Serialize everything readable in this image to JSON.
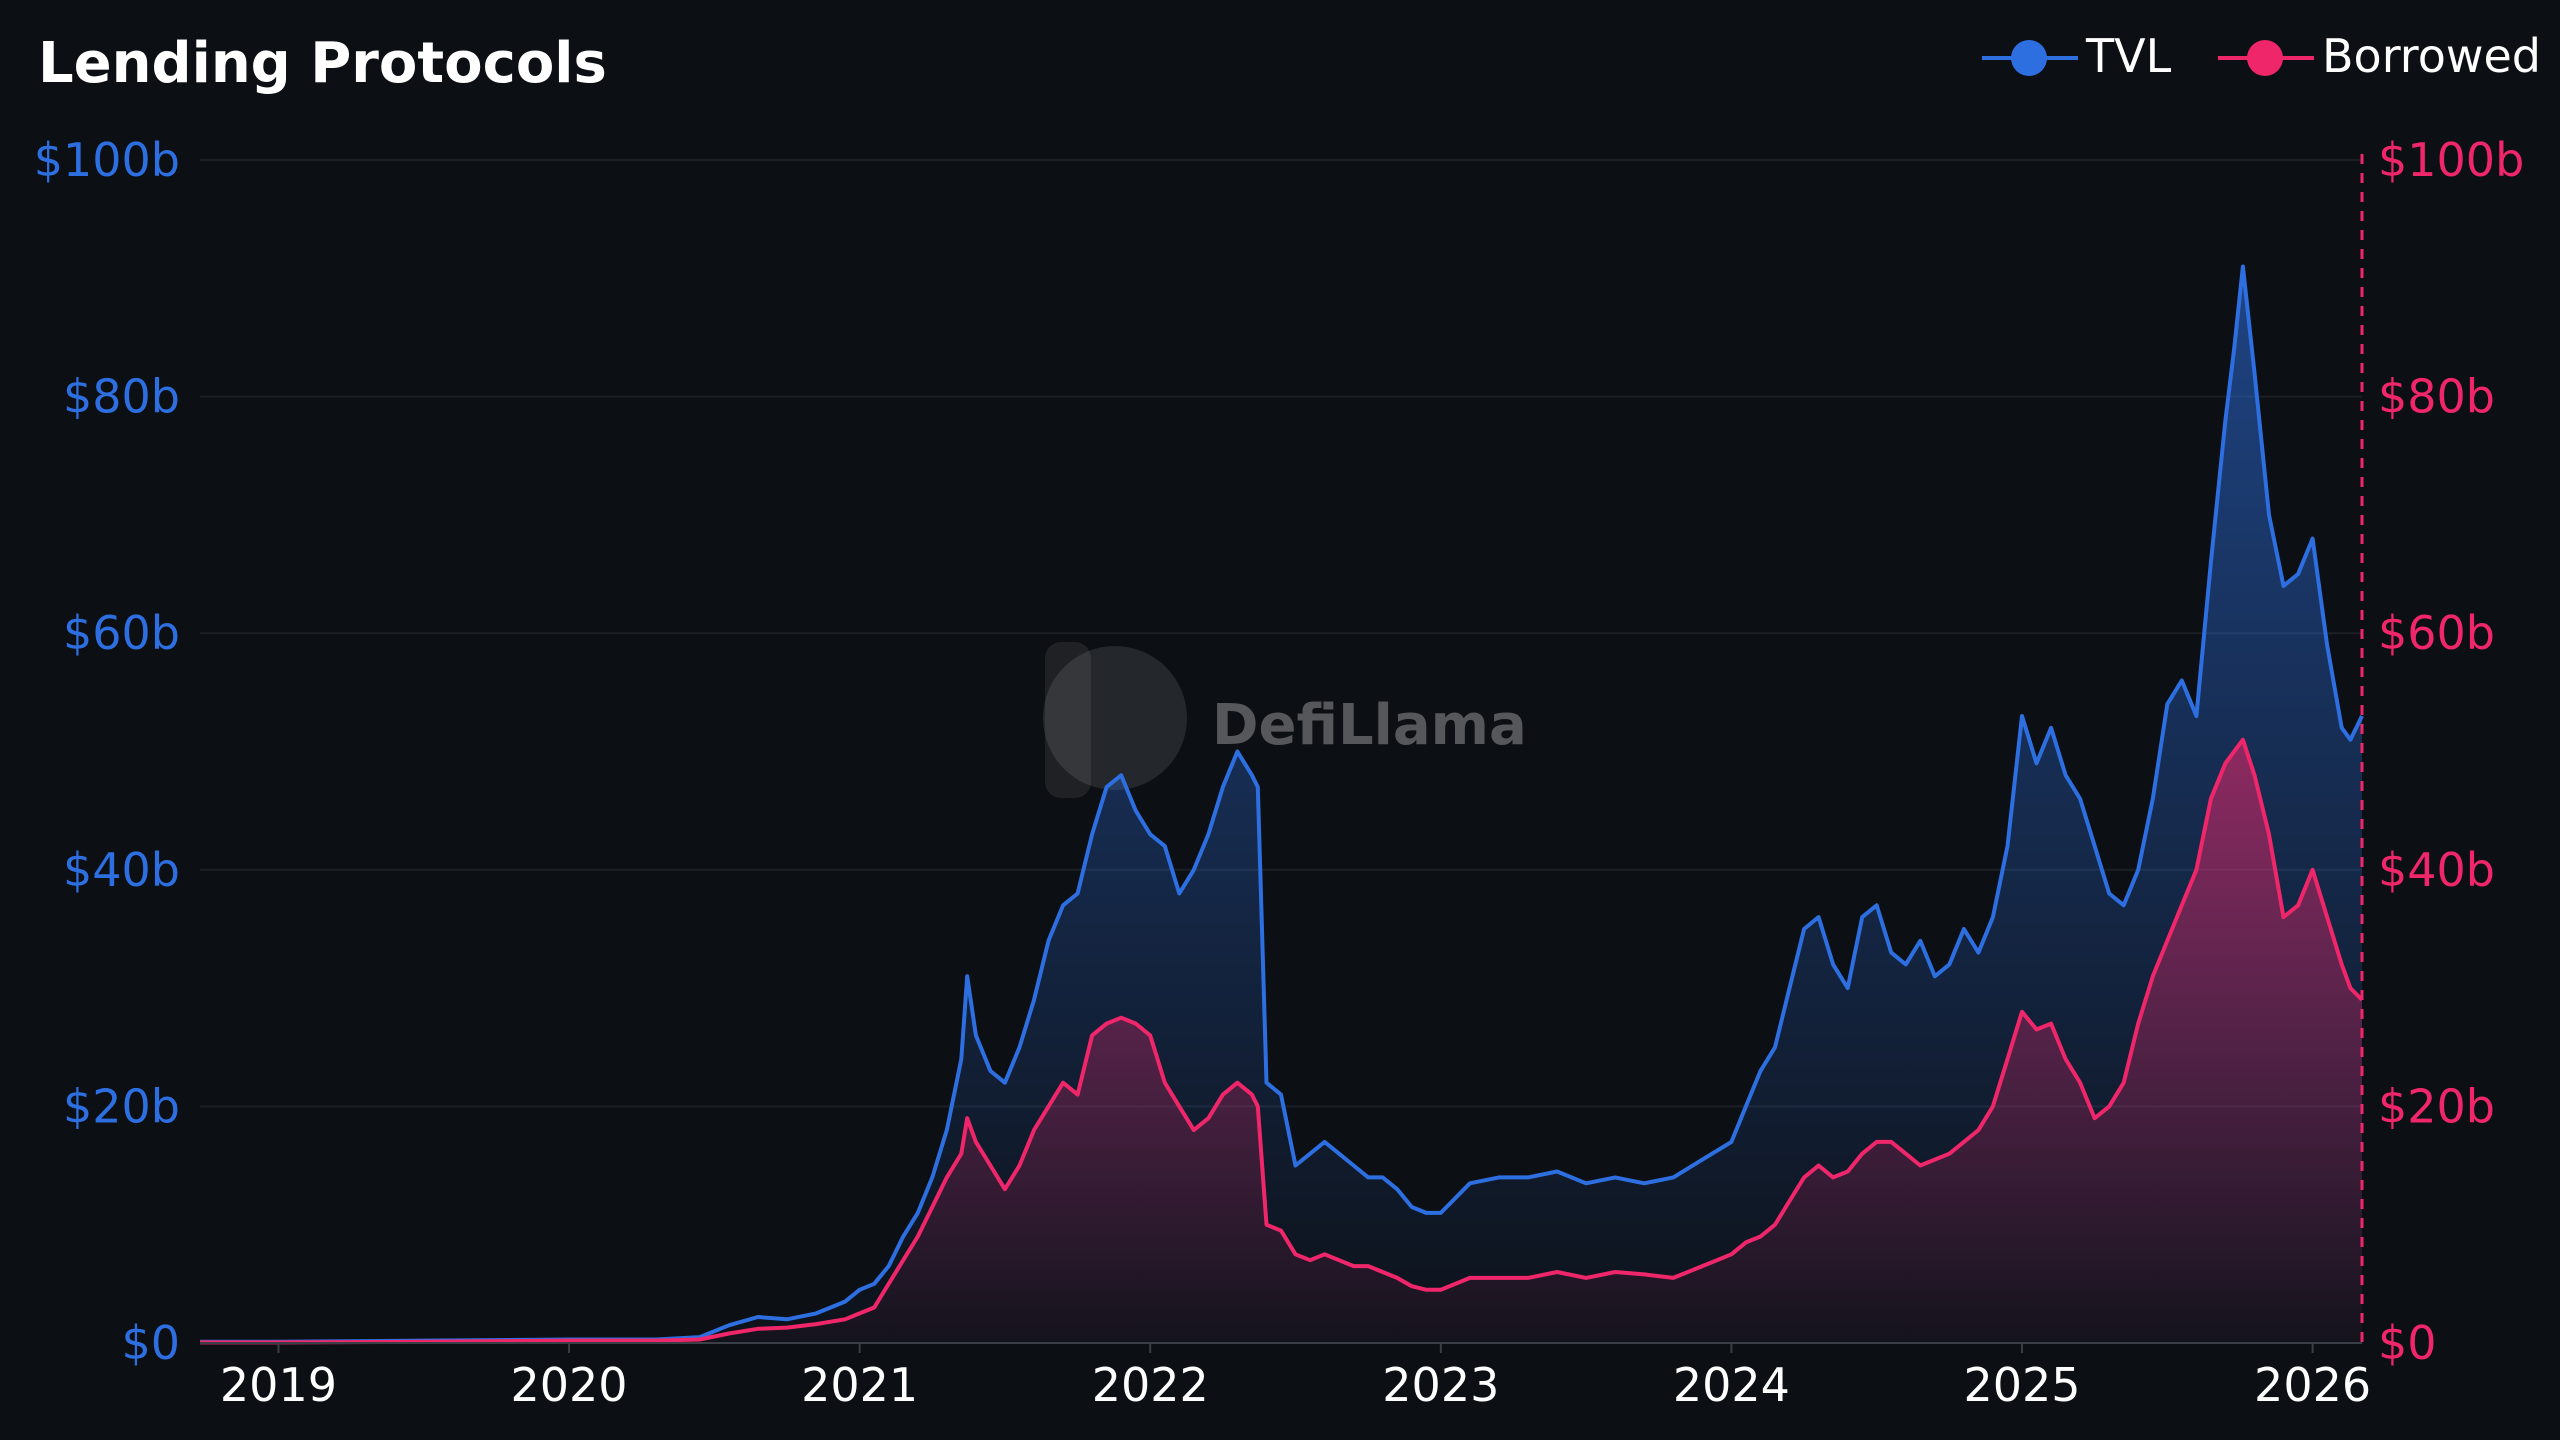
{
  "chart_data": {
    "type": "area",
    "title": "Lending Protocols",
    "watermark": "DefiLlama",
    "legend_position": "top-right",
    "grid": true,
    "x_unit": "year",
    "x_ticks": [
      "2019",
      "2020",
      "2021",
      "2022",
      "2023",
      "2024",
      "2025",
      "2026"
    ],
    "xlim": [
      2018.73,
      2026.17
    ],
    "y_left_ticks": [
      "$0",
      "$20b",
      "$40b",
      "$60b",
      "$80b",
      "$100b"
    ],
    "y_right_ticks": [
      "$0",
      "$20b",
      "$40b",
      "$60b",
      "$80b",
      "$100b"
    ],
    "ylim": [
      0,
      100
    ],
    "y_unit": "billion USD",
    "series": [
      {
        "name": "TVL",
        "color": "#2d6fe0",
        "axis": "left",
        "x": [
          2018.73,
          2019.0,
          2019.5,
          2020.0,
          2020.3,
          2020.45,
          2020.55,
          2020.65,
          2020.75,
          2020.85,
          2020.95,
          2021.0,
          2021.05,
          2021.1,
          2021.15,
          2021.2,
          2021.25,
          2021.3,
          2021.35,
          2021.37,
          2021.4,
          2021.45,
          2021.5,
          2021.55,
          2021.6,
          2021.65,
          2021.7,
          2021.75,
          2021.8,
          2021.85,
          2021.9,
          2021.95,
          2022.0,
          2022.05,
          2022.1,
          2022.15,
          2022.2,
          2022.25,
          2022.3,
          2022.35,
          2022.37,
          2022.4,
          2022.45,
          2022.5,
          2022.55,
          2022.6,
          2022.65,
          2022.7,
          2022.75,
          2022.8,
          2022.85,
          2022.9,
          2022.95,
          2023.0,
          2023.1,
          2023.2,
          2023.3,
          2023.4,
          2023.5,
          2023.6,
          2023.7,
          2023.8,
          2023.9,
          2024.0,
          2024.05,
          2024.1,
          2024.15,
          2024.2,
          2024.25,
          2024.3,
          2024.35,
          2024.4,
          2024.45,
          2024.5,
          2024.55,
          2024.6,
          2024.65,
          2024.7,
          2024.75,
          2024.8,
          2024.85,
          2024.9,
          2024.95,
          2025.0,
          2025.05,
          2025.1,
          2025.15,
          2025.2,
          2025.25,
          2025.3,
          2025.35,
          2025.4,
          2025.45,
          2025.5,
          2025.55,
          2025.6,
          2025.65,
          2025.7,
          2025.73,
          2025.76,
          2025.8,
          2025.85,
          2025.9,
          2025.95,
          2026.0,
          2026.05,
          2026.1,
          2026.13,
          2026.17
        ],
        "values": [
          0.1,
          0.1,
          0.2,
          0.3,
          0.3,
          0.5,
          1.5,
          2.2,
          2.0,
          2.5,
          3.5,
          4.5,
          5.0,
          6.5,
          9.0,
          11.0,
          14.0,
          18.0,
          24.0,
          31.0,
          26.0,
          23.0,
          22.0,
          25.0,
          29.0,
          34.0,
          37.0,
          38.0,
          43.0,
          47.0,
          48.0,
          45.0,
          43.0,
          42.0,
          38.0,
          40.0,
          43.0,
          47.0,
          50.0,
          48.0,
          47.0,
          22.0,
          21.0,
          15.0,
          16.0,
          17.0,
          16.0,
          15.0,
          14.0,
          14.0,
          13.0,
          11.5,
          11.0,
          11.0,
          13.5,
          14.0,
          14.0,
          14.5,
          13.5,
          14.0,
          13.5,
          14.0,
          15.5,
          17.0,
          20.0,
          23.0,
          25.0,
          30.0,
          35.0,
          36.0,
          32.0,
          30.0,
          36.0,
          37.0,
          33.0,
          32.0,
          34.0,
          31.0,
          32.0,
          35.0,
          33.0,
          36.0,
          42.0,
          53.0,
          49.0,
          52.0,
          48.0,
          46.0,
          42.0,
          38.0,
          37.0,
          40.0,
          46.0,
          54.0,
          56.0,
          53.0,
          66.0,
          78.0,
          84.0,
          91.0,
          82.0,
          70.0,
          64.0,
          65.0,
          68.0,
          59.0,
          52.0,
          51.0,
          53.0
        ]
      },
      {
        "name": "Borrowed",
        "color": "#f0266a",
        "axis": "right",
        "x": [
          2018.73,
          2019.0,
          2019.5,
          2020.0,
          2020.3,
          2020.45,
          2020.55,
          2020.65,
          2020.75,
          2020.85,
          2020.95,
          2021.0,
          2021.05,
          2021.1,
          2021.15,
          2021.2,
          2021.25,
          2021.3,
          2021.35,
          2021.37,
          2021.4,
          2021.45,
          2021.5,
          2021.55,
          2021.6,
          2021.65,
          2021.7,
          2021.75,
          2021.8,
          2021.85,
          2021.9,
          2021.95,
          2022.0,
          2022.05,
          2022.1,
          2022.15,
          2022.2,
          2022.25,
          2022.3,
          2022.35,
          2022.37,
          2022.4,
          2022.45,
          2022.5,
          2022.55,
          2022.6,
          2022.65,
          2022.7,
          2022.75,
          2022.8,
          2022.85,
          2022.9,
          2022.95,
          2023.0,
          2023.1,
          2023.2,
          2023.3,
          2023.4,
          2023.5,
          2023.6,
          2023.7,
          2023.8,
          2023.9,
          2024.0,
          2024.05,
          2024.1,
          2024.15,
          2024.2,
          2024.25,
          2024.3,
          2024.35,
          2024.4,
          2024.45,
          2024.5,
          2024.55,
          2024.6,
          2024.65,
          2024.7,
          2024.75,
          2024.8,
          2024.85,
          2024.9,
          2024.95,
          2025.0,
          2025.05,
          2025.1,
          2025.15,
          2025.2,
          2025.25,
          2025.3,
          2025.35,
          2025.4,
          2025.45,
          2025.5,
          2025.55,
          2025.6,
          2025.65,
          2025.7,
          2025.73,
          2025.76,
          2025.8,
          2025.85,
          2025.9,
          2025.95,
          2026.0,
          2026.05,
          2026.1,
          2026.13,
          2026.17
        ],
        "values": [
          0.05,
          0.05,
          0.1,
          0.2,
          0.2,
          0.3,
          0.8,
          1.2,
          1.3,
          1.6,
          2.0,
          2.5,
          3.0,
          5.0,
          7.0,
          9.0,
          11.5,
          14.0,
          16.0,
          19.0,
          17.0,
          15.0,
          13.0,
          15.0,
          18.0,
          20.0,
          22.0,
          21.0,
          26.0,
          27.0,
          27.5,
          27.0,
          26.0,
          22.0,
          20.0,
          18.0,
          19.0,
          21.0,
          22.0,
          21.0,
          20.0,
          10.0,
          9.5,
          7.5,
          7.0,
          7.5,
          7.0,
          6.5,
          6.5,
          6.0,
          5.5,
          4.8,
          4.5,
          4.5,
          5.5,
          5.5,
          5.5,
          6.0,
          5.5,
          6.0,
          5.8,
          5.5,
          6.5,
          7.5,
          8.5,
          9.0,
          10.0,
          12.0,
          14.0,
          15.0,
          14.0,
          14.5,
          16.0,
          17.0,
          17.0,
          16.0,
          15.0,
          15.5,
          16.0,
          17.0,
          18.0,
          20.0,
          24.0,
          28.0,
          26.5,
          27.0,
          24.0,
          22.0,
          19.0,
          20.0,
          22.0,
          27.0,
          31.0,
          34.0,
          37.0,
          40.0,
          46.0,
          49.0,
          50.0,
          51.0,
          48.0,
          43.0,
          36.0,
          37.0,
          40.0,
          36.0,
          32.0,
          30.0,
          29.0
        ]
      }
    ]
  }
}
